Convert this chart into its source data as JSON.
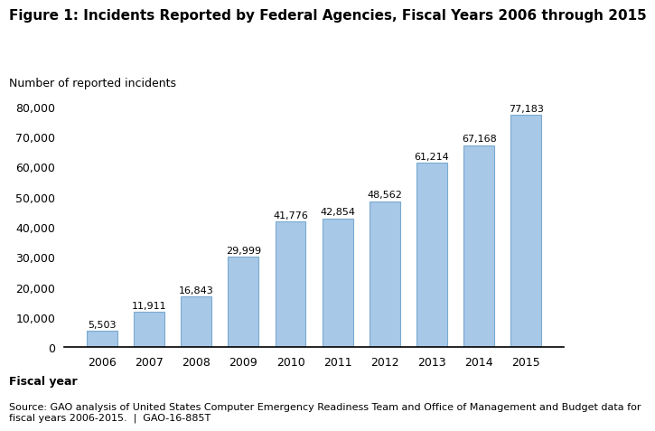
{
  "title": "Figure 1: Incidents Reported by Federal Agencies, Fiscal Years 2006 through 2015",
  "ylabel": "Number of reported incidents",
  "xlabel": "Fiscal year",
  "years": [
    2006,
    2007,
    2008,
    2009,
    2010,
    2011,
    2012,
    2013,
    2014,
    2015
  ],
  "values": [
    5503,
    11911,
    16843,
    29999,
    41776,
    42854,
    48562,
    61214,
    67168,
    77183
  ],
  "bar_color": "#A8C8E8",
  "bar_edge_color": "#7AAAD0",
  "ylim": [
    0,
    85000
  ],
  "yticks": [
    0,
    10000,
    20000,
    30000,
    40000,
    50000,
    60000,
    70000,
    80000
  ],
  "source_text": "Source: GAO analysis of United States Computer Emergency Readiness Team and Office of Management and Budget data for\nfiscal years 2006-2015.  |  GAO-16-885T",
  "title_fontsize": 11,
  "ylabel_fontsize": 9,
  "xlabel_fontsize": 9,
  "tick_fontsize": 9,
  "source_fontsize": 8,
  "annotation_fontsize": 8
}
